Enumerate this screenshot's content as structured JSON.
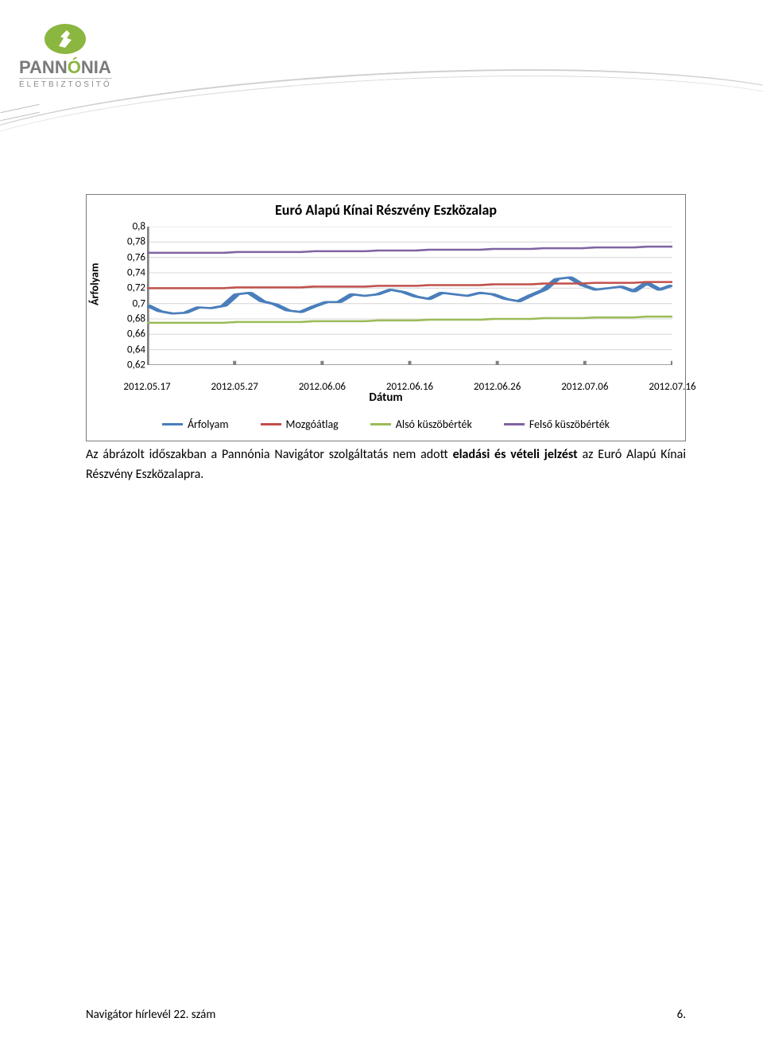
{
  "logo": {
    "main_prefix": "PANN",
    "main_accent": "Ó",
    "main_suffix": "NIA",
    "sub": "ÉLETBIZTOSÍTÓ",
    "icon_color": "#8bb63f"
  },
  "chart": {
    "type": "line",
    "title": "Euró Alapú Kínai Részvény Eszközalap",
    "ylabel": "Árfolyam",
    "xlabel": "Dátum",
    "ylim": [
      0.62,
      0.8
    ],
    "ytick_step": 0.02,
    "ytick_labels": [
      "0,62",
      "0,64",
      "0,66",
      "0,68",
      "0,7",
      "0,72",
      "0,74",
      "0,76",
      "0,78",
      "0,8"
    ],
    "xtick_labels": [
      "2012.05.17",
      "2012.05.27",
      "2012.06.06",
      "2012.06.16",
      "2012.06.26",
      "2012.07.06",
      "2012.07.16"
    ],
    "n_points": 42,
    "series": {
      "arfolyam": {
        "label": "Árfolyam",
        "color": "#4a7ebb",
        "width": 2.4,
        "values": [
          0.698,
          0.69,
          0.687,
          0.688,
          0.695,
          0.694,
          0.697,
          0.712,
          0.714,
          0.703,
          0.699,
          0.691,
          0.689,
          0.696,
          0.702,
          0.702,
          0.712,
          0.71,
          0.712,
          0.718,
          0.715,
          0.709,
          0.706,
          0.714,
          0.712,
          0.71,
          0.714,
          0.712,
          0.706,
          0.703,
          0.711,
          0.718,
          0.732,
          0.734,
          0.724,
          0.718,
          0.72,
          0.722,
          0.716,
          0.727,
          0.718,
          0.724
        ]
      },
      "mozgoatlag": {
        "label": "Mozgóátlag",
        "color": "#c0504d",
        "width": 2.4,
        "values": [
          0.72,
          0.72,
          0.72,
          0.72,
          0.72,
          0.72,
          0.72,
          0.721,
          0.721,
          0.721,
          0.721,
          0.721,
          0.721,
          0.722,
          0.722,
          0.722,
          0.722,
          0.722,
          0.723,
          0.723,
          0.723,
          0.723,
          0.724,
          0.724,
          0.724,
          0.724,
          0.724,
          0.725,
          0.725,
          0.725,
          0.725,
          0.726,
          0.726,
          0.726,
          0.726,
          0.727,
          0.727,
          0.727,
          0.727,
          0.728,
          0.728,
          0.728
        ]
      },
      "also": {
        "label": "Alsó küszöbérték",
        "color": "#9bbb59",
        "width": 2.4,
        "values": [
          0.675,
          0.675,
          0.675,
          0.675,
          0.675,
          0.675,
          0.675,
          0.676,
          0.676,
          0.676,
          0.676,
          0.676,
          0.676,
          0.677,
          0.677,
          0.677,
          0.677,
          0.677,
          0.678,
          0.678,
          0.678,
          0.678,
          0.679,
          0.679,
          0.679,
          0.679,
          0.679,
          0.68,
          0.68,
          0.68,
          0.68,
          0.681,
          0.681,
          0.681,
          0.681,
          0.682,
          0.682,
          0.682,
          0.682,
          0.683,
          0.683,
          0.683
        ]
      },
      "felso": {
        "label": "Felső küszöbérték",
        "color": "#8064a2",
        "width": 2.4,
        "values": [
          0.766,
          0.766,
          0.766,
          0.766,
          0.766,
          0.766,
          0.766,
          0.767,
          0.767,
          0.767,
          0.767,
          0.767,
          0.767,
          0.768,
          0.768,
          0.768,
          0.768,
          0.768,
          0.769,
          0.769,
          0.769,
          0.769,
          0.77,
          0.77,
          0.77,
          0.77,
          0.77,
          0.771,
          0.771,
          0.771,
          0.771,
          0.772,
          0.772,
          0.772,
          0.772,
          0.773,
          0.773,
          0.773,
          0.773,
          0.774,
          0.774,
          0.774
        ]
      }
    },
    "grid_color": "#d9d9d9",
    "axis_color": "#808080",
    "background": "#ffffff",
    "tick_fontsize": 13,
    "title_fontsize": 18
  },
  "legend_order": [
    "arfolyam",
    "mozgoatlag",
    "also",
    "felso"
  ],
  "body": {
    "t1": "Az ábrázolt időszakban a Pannónia Navigátor szolgáltatás nem adott ",
    "bold": "eladási és vételi jelzést",
    "t2": " az Euró Alapú Kínai Részvény Eszközalapra."
  },
  "footer": {
    "left": "Navigátor hírlevél 22. szám",
    "right": "6."
  }
}
